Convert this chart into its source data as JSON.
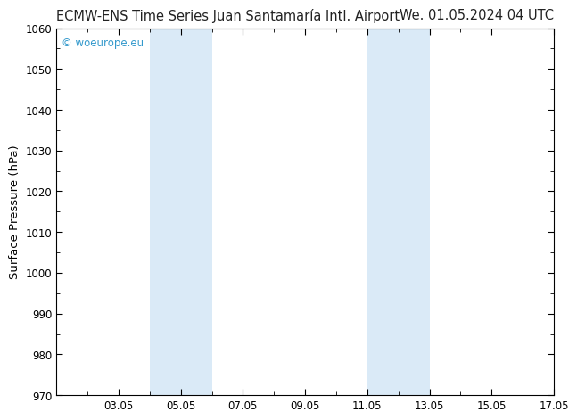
{
  "title_left": "ECMW-ENS Time Series Juan Santamaría Intl. Airport",
  "title_right": "We. 01.05.2024 04 UTC",
  "ylabel": "Surface Pressure (hPa)",
  "ylim": [
    970,
    1060
  ],
  "yticks": [
    970,
    980,
    990,
    1000,
    1010,
    1020,
    1030,
    1040,
    1050,
    1060
  ],
  "xlim": [
    1.0,
    17.0
  ],
  "xtick_labels": [
    "03.05",
    "05.05",
    "07.05",
    "09.05",
    "11.05",
    "13.05",
    "15.05",
    "17.05"
  ],
  "xtick_positions": [
    3,
    5,
    7,
    9,
    11,
    13,
    15,
    17
  ],
  "shaded_bands": [
    {
      "xmin": 4.0,
      "xmax": 6.0
    },
    {
      "xmin": 11.0,
      "xmax": 13.0
    }
  ],
  "band_color": "#daeaf7",
  "background_color": "#ffffff",
  "watermark_text": "© woeurope.eu",
  "watermark_color": "#3399cc",
  "title_fontsize": 10.5,
  "axis_label_fontsize": 9.5,
  "tick_fontsize": 8.5,
  "watermark_fontsize": 8.5,
  "title_color": "#222222"
}
